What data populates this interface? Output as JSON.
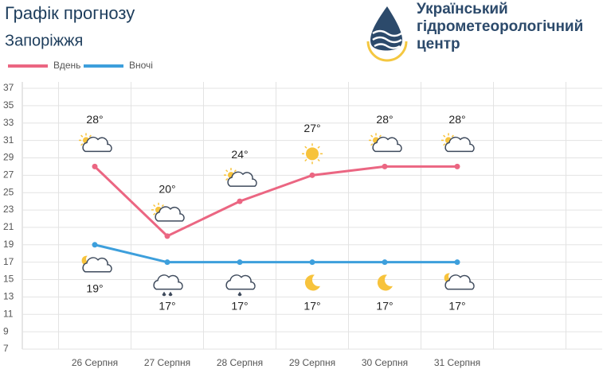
{
  "header": {
    "title": "Графік прогнозу",
    "subtitle": "Запоріжжя",
    "organization": [
      "Український",
      "гідрометеорологічний",
      "центр"
    ]
  },
  "chart_data": {
    "type": "line",
    "categories": [
      "26 Серпня",
      "27 Серпня",
      "28 Серпня",
      "29 Серпня",
      "30 Серпня",
      "31 Серпня"
    ],
    "series": [
      {
        "name": "Вдень",
        "color": "#eb6682",
        "values": [
          28,
          20,
          24,
          27,
          28,
          28
        ],
        "value_labels": [
          "28°",
          "20°",
          "24°",
          "27°",
          "28°",
          "28°"
        ]
      },
      {
        "name": "Вночі",
        "color": "#3d9fdc",
        "values": [
          19,
          17,
          17,
          17,
          17,
          17
        ],
        "value_labels": [
          "19°",
          "17°",
          "17°",
          "17°",
          "17°",
          "17°"
        ]
      }
    ],
    "ylim": [
      7,
      37
    ],
    "yticks": [
      7,
      9,
      11,
      13,
      15,
      17,
      19,
      21,
      23,
      25,
      27,
      29,
      31,
      33,
      35,
      37
    ],
    "grid": true,
    "legend": "top-left"
  }
}
